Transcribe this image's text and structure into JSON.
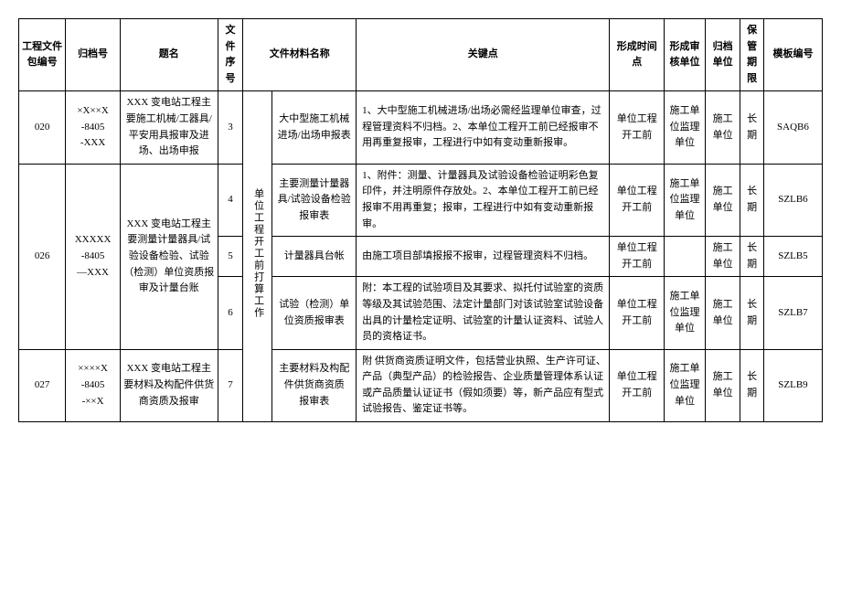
{
  "headers": {
    "pkg": "工程文件包编号",
    "arch": "归档号",
    "title": "题名",
    "seq": "文件序号",
    "matname": "文件材料名称",
    "key": "关键点",
    "time": "形成时间点",
    "review": "形成审核单位",
    "dept": "归档单位",
    "keep": "保管期限",
    "tmpl": "模板编号"
  },
  "stage_label": "单位工程开工前打算工作",
  "rows": [
    {
      "pkg": "020",
      "arch": "×X××X\n-8405\n-XXX",
      "title": "XXX 变电站工程主要施工机械/工器具/平安用具报审及进场、出场申报",
      "seq": "3",
      "matname": "大中型施工机械进场/出场申报表",
      "key": "1、大中型施工机械进场/出场必需经监理单位审查，过程管理资料不归档。2、本单位工程开工前已经报审不用再重复报审，工程进行中如有变动重新报审。",
      "time": "单位工程开工前",
      "review": "施工单位监理单位",
      "dept": "施工单位",
      "keep": "长期",
      "tmpl": "SAQB6"
    },
    {
      "pkg": "026",
      "arch": "XXXXX\n-8405\n—XXX",
      "title": "XXX 变电站工程主要测量计量器具/试验设备检验、试验（检测）单位资质报审及计量台账",
      "sub": [
        {
          "seq": "4",
          "matname": "主要测量计量器具/试验设备检验报审表",
          "key": "1、附件：测量、计量器具及试验设备检验证明彩色复印件，并注明原件存放处。2、本单位工程开工前已经报审不用再重复；报审，工程进行中如有变动重新报审。",
          "time": "单位工程开工前",
          "review": "施工单位监理单位",
          "dept": "施工单位",
          "keep": "长期",
          "tmpl": "SZLB6"
        },
        {
          "seq": "5",
          "matname": "计量器具台帐",
          "key": "由施工项目部填报报不报审，过程管理资料不归档。",
          "time": "单位工程开工前",
          "review": "",
          "dept": "施工单位",
          "keep": "长期",
          "tmpl": "SZLB5"
        },
        {
          "seq": "6",
          "matname": "试验（检测）单位资质报审表",
          "key": "附：本工程的试验项目及其要求、拟托付试验室的资质等级及其试验范围、法定计量部门对该试验室试验设备出具的计量检定证明、试验室的计量认证资料、试验人员的资格证书。",
          "time": "单位工程开工前",
          "review": "施工单位监理单位",
          "dept": "施工单位",
          "keep": "长期",
          "tmpl": "SZLB7"
        }
      ]
    },
    {
      "pkg": "027",
      "arch": "××××X\n-8405\n-××X",
      "title": "XXX 变电站工程主要材料及构配件供货商资质及报审",
      "seq": "7",
      "matname": "主要材料及构配件供货商资质\n报审表",
      "key": "附 供货商资质证明文件，包括营业执照、生产许可证、产品（典型产品）的检验报告、企业质量管理体系认证或产品质量认证证书（假如须要）等，新产品应有型式试验报告、鉴定证书等。",
      "time": "单位工程开工前",
      "review": "施工单位监理单位",
      "dept": "施工单位",
      "keep": "长期",
      "tmpl": "SZLB9"
    }
  ]
}
